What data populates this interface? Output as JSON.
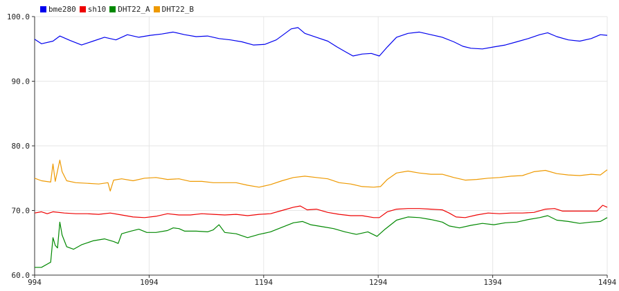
{
  "chart_data": {
    "type": "line",
    "title": "",
    "xlabel": "",
    "ylabel": "",
    "xlim": [
      994,
      1494
    ],
    "ylim": [
      60.0,
      100.0
    ],
    "x_ticks": [
      "994",
      "1094",
      "1194",
      "1294",
      "1394",
      "1494"
    ],
    "y_ticks": [
      "60.0",
      "70.0",
      "80.0",
      "90.0",
      "100.0"
    ],
    "grid": true,
    "legend_position": "top-left",
    "series": [
      {
        "name": "bme280",
        "color": "#0000ee",
        "points": [
          [
            994,
            96.5
          ],
          [
            1000,
            95.8
          ],
          [
            1010,
            96.2
          ],
          [
            1016,
            97.0
          ],
          [
            1025,
            96.3
          ],
          [
            1035,
            95.6
          ],
          [
            1045,
            96.2
          ],
          [
            1055,
            96.8
          ],
          [
            1065,
            96.4
          ],
          [
            1075,
            97.2
          ],
          [
            1085,
            96.8
          ],
          [
            1095,
            97.1
          ],
          [
            1105,
            97.3
          ],
          [
            1115,
            97.6
          ],
          [
            1125,
            97.2
          ],
          [
            1135,
            96.9
          ],
          [
            1145,
            97.0
          ],
          [
            1155,
            96.6
          ],
          [
            1165,
            96.4
          ],
          [
            1175,
            96.1
          ],
          [
            1185,
            95.6
          ],
          [
            1195,
            95.7
          ],
          [
            1205,
            96.4
          ],
          [
            1212,
            97.3
          ],
          [
            1218,
            98.1
          ],
          [
            1224,
            98.3
          ],
          [
            1230,
            97.4
          ],
          [
            1240,
            96.8
          ],
          [
            1250,
            96.2
          ],
          [
            1258,
            95.3
          ],
          [
            1265,
            94.6
          ],
          [
            1272,
            93.9
          ],
          [
            1280,
            94.2
          ],
          [
            1288,
            94.3
          ],
          [
            1295,
            93.9
          ],
          [
            1302,
            95.3
          ],
          [
            1310,
            96.8
          ],
          [
            1320,
            97.4
          ],
          [
            1330,
            97.6
          ],
          [
            1340,
            97.2
          ],
          [
            1350,
            96.8
          ],
          [
            1360,
            96.1
          ],
          [
            1368,
            95.4
          ],
          [
            1375,
            95.1
          ],
          [
            1385,
            95.0
          ],
          [
            1395,
            95.3
          ],
          [
            1405,
            95.6
          ],
          [
            1415,
            96.1
          ],
          [
            1425,
            96.6
          ],
          [
            1435,
            97.2
          ],
          [
            1442,
            97.5
          ],
          [
            1450,
            96.9
          ],
          [
            1460,
            96.4
          ],
          [
            1470,
            96.2
          ],
          [
            1480,
            96.6
          ],
          [
            1488,
            97.2
          ],
          [
            1494,
            97.1
          ]
        ]
      },
      {
        "name": "sh10",
        "color": "#ee0000",
        "points": [
          [
            994,
            69.6
          ],
          [
            1000,
            69.8
          ],
          [
            1005,
            69.5
          ],
          [
            1010,
            69.8
          ],
          [
            1020,
            69.6
          ],
          [
            1030,
            69.5
          ],
          [
            1040,
            69.5
          ],
          [
            1050,
            69.4
          ],
          [
            1060,
            69.6
          ],
          [
            1070,
            69.3
          ],
          [
            1080,
            69.0
          ],
          [
            1090,
            68.9
          ],
          [
            1100,
            69.1
          ],
          [
            1110,
            69.5
          ],
          [
            1120,
            69.3
          ],
          [
            1130,
            69.3
          ],
          [
            1140,
            69.5
          ],
          [
            1150,
            69.4
          ],
          [
            1160,
            69.3
          ],
          [
            1170,
            69.4
          ],
          [
            1180,
            69.2
          ],
          [
            1190,
            69.4
          ],
          [
            1200,
            69.5
          ],
          [
            1210,
            70.0
          ],
          [
            1220,
            70.5
          ],
          [
            1226,
            70.7
          ],
          [
            1232,
            70.1
          ],
          [
            1240,
            70.2
          ],
          [
            1250,
            69.7
          ],
          [
            1260,
            69.4
          ],
          [
            1270,
            69.2
          ],
          [
            1280,
            69.2
          ],
          [
            1290,
            68.9
          ],
          [
            1295,
            68.9
          ],
          [
            1302,
            69.8
          ],
          [
            1310,
            70.2
          ],
          [
            1320,
            70.3
          ],
          [
            1330,
            70.3
          ],
          [
            1340,
            70.2
          ],
          [
            1350,
            70.1
          ],
          [
            1356,
            69.6
          ],
          [
            1362,
            69.0
          ],
          [
            1370,
            68.9
          ],
          [
            1380,
            69.3
          ],
          [
            1390,
            69.6
          ],
          [
            1400,
            69.5
          ],
          [
            1410,
            69.6
          ],
          [
            1420,
            69.6
          ],
          [
            1430,
            69.7
          ],
          [
            1440,
            70.2
          ],
          [
            1448,
            70.3
          ],
          [
            1455,
            69.9
          ],
          [
            1465,
            69.9
          ],
          [
            1475,
            69.9
          ],
          [
            1485,
            69.9
          ],
          [
            1490,
            70.8
          ],
          [
            1494,
            70.5
          ]
        ]
      },
      {
        "name": "DHT22_A",
        "color": "#008800",
        "points": [
          [
            994,
            61.2
          ],
          [
            1000,
            61.2
          ],
          [
            1008,
            62.0
          ],
          [
            1010,
            65.8
          ],
          [
            1012,
            64.6
          ],
          [
            1014,
            64.2
          ],
          [
            1016,
            68.2
          ],
          [
            1018,
            66.2
          ],
          [
            1022,
            64.4
          ],
          [
            1028,
            64.0
          ],
          [
            1035,
            64.7
          ],
          [
            1045,
            65.3
          ],
          [
            1055,
            65.6
          ],
          [
            1063,
            65.2
          ],
          [
            1067,
            64.9
          ],
          [
            1070,
            66.4
          ],
          [
            1078,
            66.8
          ],
          [
            1085,
            67.1
          ],
          [
            1092,
            66.6
          ],
          [
            1100,
            66.6
          ],
          [
            1110,
            66.9
          ],
          [
            1115,
            67.3
          ],
          [
            1120,
            67.2
          ],
          [
            1125,
            66.8
          ],
          [
            1135,
            66.8
          ],
          [
            1145,
            66.7
          ],
          [
            1150,
            67.0
          ],
          [
            1155,
            67.8
          ],
          [
            1160,
            66.6
          ],
          [
            1170,
            66.4
          ],
          [
            1180,
            65.8
          ],
          [
            1190,
            66.3
          ],
          [
            1200,
            66.7
          ],
          [
            1210,
            67.4
          ],
          [
            1220,
            68.1
          ],
          [
            1228,
            68.3
          ],
          [
            1235,
            67.8
          ],
          [
            1245,
            67.5
          ],
          [
            1255,
            67.2
          ],
          [
            1265,
            66.7
          ],
          [
            1275,
            66.3
          ],
          [
            1285,
            66.7
          ],
          [
            1293,
            66.0
          ],
          [
            1300,
            67.1
          ],
          [
            1310,
            68.5
          ],
          [
            1320,
            69.0
          ],
          [
            1330,
            68.9
          ],
          [
            1340,
            68.6
          ],
          [
            1350,
            68.2
          ],
          [
            1356,
            67.6
          ],
          [
            1365,
            67.3
          ],
          [
            1375,
            67.7
          ],
          [
            1385,
            68.0
          ],
          [
            1395,
            67.8
          ],
          [
            1405,
            68.1
          ],
          [
            1415,
            68.2
          ],
          [
            1425,
            68.6
          ],
          [
            1435,
            68.9
          ],
          [
            1442,
            69.2
          ],
          [
            1450,
            68.5
          ],
          [
            1460,
            68.3
          ],
          [
            1470,
            68.0
          ],
          [
            1480,
            68.2
          ],
          [
            1488,
            68.3
          ],
          [
            1494,
            68.9
          ]
        ]
      },
      {
        "name": "DHT22_B",
        "color": "#ee9900",
        "points": [
          [
            994,
            75.0
          ],
          [
            1000,
            74.6
          ],
          [
            1008,
            74.4
          ],
          [
            1010,
            77.2
          ],
          [
            1012,
            74.5
          ],
          [
            1016,
            77.8
          ],
          [
            1018,
            76.0
          ],
          [
            1022,
            74.6
          ],
          [
            1030,
            74.3
          ],
          [
            1040,
            74.2
          ],
          [
            1050,
            74.1
          ],
          [
            1058,
            74.3
          ],
          [
            1060,
            73.0
          ],
          [
            1063,
            74.7
          ],
          [
            1070,
            74.9
          ],
          [
            1080,
            74.6
          ],
          [
            1090,
            75.0
          ],
          [
            1100,
            75.1
          ],
          [
            1110,
            74.8
          ],
          [
            1120,
            74.9
          ],
          [
            1130,
            74.5
          ],
          [
            1140,
            74.5
          ],
          [
            1150,
            74.3
          ],
          [
            1160,
            74.3
          ],
          [
            1170,
            74.3
          ],
          [
            1180,
            73.9
          ],
          [
            1190,
            73.6
          ],
          [
            1200,
            74.0
          ],
          [
            1210,
            74.6
          ],
          [
            1220,
            75.1
          ],
          [
            1230,
            75.3
          ],
          [
            1240,
            75.1
          ],
          [
            1250,
            74.9
          ],
          [
            1260,
            74.3
          ],
          [
            1270,
            74.1
          ],
          [
            1280,
            73.7
          ],
          [
            1290,
            73.6
          ],
          [
            1296,
            73.7
          ],
          [
            1302,
            74.8
          ],
          [
            1310,
            75.8
          ],
          [
            1320,
            76.1
          ],
          [
            1330,
            75.8
          ],
          [
            1340,
            75.6
          ],
          [
            1350,
            75.6
          ],
          [
            1360,
            75.1
          ],
          [
            1370,
            74.7
          ],
          [
            1380,
            74.8
          ],
          [
            1390,
            75.0
          ],
          [
            1400,
            75.1
          ],
          [
            1410,
            75.3
          ],
          [
            1420,
            75.4
          ],
          [
            1430,
            76.0
          ],
          [
            1440,
            76.2
          ],
          [
            1450,
            75.7
          ],
          [
            1460,
            75.5
          ],
          [
            1470,
            75.4
          ],
          [
            1480,
            75.6
          ],
          [
            1488,
            75.5
          ],
          [
            1494,
            76.3
          ]
        ]
      }
    ]
  }
}
